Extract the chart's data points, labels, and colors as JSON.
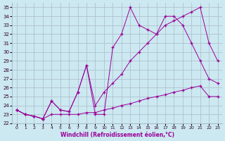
{
  "xlabel": "Windchill (Refroidissement éolien,°C)",
  "bg_color": "#cce8f0",
  "grid_color": "#aabbcc",
  "line_color": "#990099",
  "xlim": [
    -0.5,
    23.5
  ],
  "ylim": [
    22,
    35.5
  ],
  "xticks": [
    0,
    1,
    2,
    3,
    4,
    5,
    6,
    7,
    8,
    9,
    10,
    11,
    12,
    13,
    14,
    15,
    16,
    17,
    18,
    19,
    20,
    21,
    22,
    23
  ],
  "yticks": [
    22,
    23,
    24,
    25,
    26,
    27,
    28,
    29,
    30,
    31,
    32,
    33,
    34,
    35
  ],
  "s1_x": [
    0,
    1,
    2,
    3,
    4,
    5,
    6,
    7,
    8,
    9,
    10,
    11,
    12,
    13,
    14,
    15,
    16,
    17,
    18,
    19,
    20,
    21,
    22,
    23
  ],
  "s1_y": [
    23.5,
    23.0,
    22.8,
    22.5,
    23.0,
    23.0,
    23.0,
    23.0,
    23.2,
    23.2,
    23.5,
    23.7,
    24.0,
    24.2,
    24.5,
    24.8,
    25.0,
    25.2,
    25.5,
    25.7,
    26.0,
    26.2,
    25.0,
    25.0
  ],
  "s2_x": [
    0,
    1,
    2,
    3,
    4,
    5,
    6,
    7,
    8,
    9,
    10,
    11,
    12,
    13,
    14,
    15,
    16,
    17,
    18,
    19,
    20,
    21,
    22,
    23
  ],
  "s2_y": [
    23.5,
    23.0,
    22.8,
    22.5,
    24.5,
    23.5,
    23.3,
    25.5,
    28.5,
    24.0,
    25.5,
    26.5,
    27.5,
    29.0,
    30.0,
    31.0,
    32.0,
    33.0,
    33.5,
    34.0,
    34.5,
    35.0,
    31.0,
    29.0
  ],
  "s3_x": [
    0,
    1,
    2,
    3,
    4,
    5,
    6,
    7,
    8,
    9,
    10,
    11,
    12,
    13,
    14,
    15,
    16,
    17,
    18,
    19,
    20,
    21,
    22,
    23
  ],
  "s3_y": [
    23.5,
    23.0,
    22.8,
    22.5,
    24.5,
    23.5,
    23.3,
    25.5,
    28.5,
    23.0,
    23.0,
    30.5,
    32.0,
    35.0,
    33.0,
    32.5,
    32.0,
    34.0,
    34.0,
    33.0,
    31.0,
    29.0,
    27.0,
    26.5
  ]
}
